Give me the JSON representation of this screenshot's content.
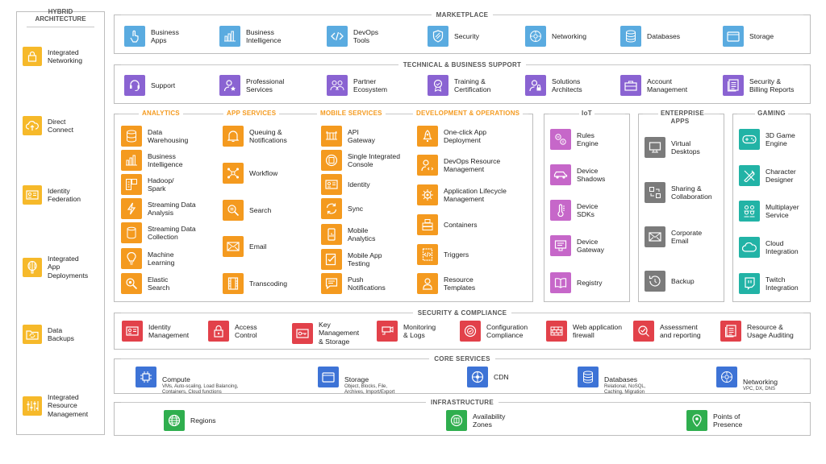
{
  "hybrid": {
    "title": "HYBRID\nARCHITECTURE",
    "items": [
      {
        "label": "Integrated\nNetworking"
      },
      {
        "label": "Direct\nConnect"
      },
      {
        "label": "Identity\nFederation"
      },
      {
        "label": "Integrated\nApp\nDeployments"
      },
      {
        "label": "Data\nBackups"
      },
      {
        "label": "Integrated\nResource\nManagement"
      }
    ]
  },
  "marketplace": {
    "title": "MARKETPLACE",
    "items": [
      {
        "label": "Business\nApps"
      },
      {
        "label": "Business\nIntelligence"
      },
      {
        "label": "DevOps\nTools"
      },
      {
        "label": "Security"
      },
      {
        "label": "Networking"
      },
      {
        "label": "Databases"
      },
      {
        "label": "Storage"
      }
    ]
  },
  "support": {
    "title": "TECHNICAL & BUSINESS SUPPORT",
    "items": [
      {
        "label": "Support"
      },
      {
        "label": "Professional\nServices"
      },
      {
        "label": "Partner\nEcosystem"
      },
      {
        "label": "Training &\nCertification"
      },
      {
        "label": "Solutions\nArchitects"
      },
      {
        "label": "Account\nManagement"
      },
      {
        "label": "Security &\nBilling Reports"
      }
    ]
  },
  "analytics": {
    "title": "ANALYTICS",
    "items": [
      {
        "label": "Data\nWarehousing"
      },
      {
        "label": "Business\nIntelligence"
      },
      {
        "label": "Hadoop/\nSpark"
      },
      {
        "label": "Streaming Data\nAnalysis"
      },
      {
        "label": "Streaming Data\nCollection"
      },
      {
        "label": "Machine\nLearning"
      },
      {
        "label": "Elastic\nSearch"
      }
    ]
  },
  "appservices": {
    "title": "APP SERVICES",
    "items": [
      {
        "label": "Queuing &\nNotifications"
      },
      {
        "label": "Workflow"
      },
      {
        "label": "Search"
      },
      {
        "label": "Email"
      },
      {
        "label": "Transcoding"
      }
    ]
  },
  "mobile": {
    "title": "MOBILE SERVICES",
    "items": [
      {
        "label": "API\nGateway"
      },
      {
        "label": "Single Integrated\nConsole"
      },
      {
        "label": "Identity"
      },
      {
        "label": "Sync"
      },
      {
        "label": "Mobile\nAnalytics"
      },
      {
        "label": "Mobile App\nTesting"
      },
      {
        "label": "Push\nNotifications"
      }
    ]
  },
  "devops": {
    "title": "DEVELOPMENT & OPERATIONS",
    "items": [
      {
        "label": "One-click App\nDeployment"
      },
      {
        "label": "DevOps Resource\nManagement"
      },
      {
        "label": "Application Lifecycle\nManagement"
      },
      {
        "label": "Containers"
      },
      {
        "label": "Triggers"
      },
      {
        "label": "Resource\nTemplates"
      }
    ]
  },
  "iot": {
    "title": "IoT",
    "items": [
      {
        "label": "Rules\nEngine"
      },
      {
        "label": "Device\nShadows"
      },
      {
        "label": "Device\nSDKs"
      },
      {
        "label": "Device\nGateway"
      },
      {
        "label": "Registry"
      }
    ]
  },
  "enterprise": {
    "title": "ENTERPRISE\nAPPS",
    "items": [
      {
        "label": "Virtual\nDesktops"
      },
      {
        "label": "Sharing &\nCollaboration"
      },
      {
        "label": "Corporate\nEmail"
      },
      {
        "label": "Backup"
      }
    ]
  },
  "gaming": {
    "title": "GAMING",
    "items": [
      {
        "label": "3D Game\nEngine"
      },
      {
        "label": "Character\nDesigner"
      },
      {
        "label": "Multiplayer\nService"
      },
      {
        "label": "Cloud\nIntegration"
      },
      {
        "label": "Twitch\nIntegration"
      }
    ]
  },
  "security": {
    "title": "SECURITY & COMPLIANCE",
    "items": [
      {
        "label": "Identity\nManagement"
      },
      {
        "label": "Access\nControl"
      },
      {
        "label": "Key\nManagement\n& Storage"
      },
      {
        "label": "Monitoring\n& Logs"
      },
      {
        "label": "Configuration\nCompliance"
      },
      {
        "label": "Web application\nfirewall"
      },
      {
        "label": "Assessment\nand reporting"
      },
      {
        "label": "Resource &\nUsage Auditing"
      }
    ]
  },
  "core": {
    "title": "CORE SERVICES",
    "items": [
      {
        "label": "Compute",
        "sub": "VMs, Auto-scaling, Load Balancing,\nContainers, Cloud functions"
      },
      {
        "label": "Storage",
        "sub": "Object, Blocks, File,\nArchives, Import/Export"
      },
      {
        "label": "CDN",
        "sub": ""
      },
      {
        "label": "Databases",
        "sub": "Relational, NoSQL,\nCaching, Migration"
      },
      {
        "label": "Networking",
        "sub": "VPC, DX, DNS"
      }
    ]
  },
  "infra": {
    "title": "INFRASTRUCTURE",
    "items": [
      {
        "label": "Regions"
      },
      {
        "label": "Availability\nZones"
      },
      {
        "label": "Points of\nPresence"
      }
    ]
  },
  "colors": {
    "marketplace": "#5aabe0",
    "support": "#8a63d2",
    "services": "#f49a1f",
    "iot": "#c667c9",
    "enterprise": "#7b7b7b",
    "gaming": "#22b3a6",
    "security": "#e2414a",
    "core": "#3d73d6",
    "infrastructure": "#2fae4e",
    "hybrid": "#f6b92a",
    "section_heading": "#f49a1f"
  }
}
